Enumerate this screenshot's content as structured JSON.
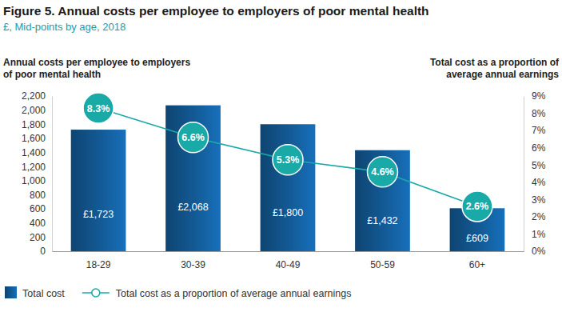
{
  "chart_data": {
    "type": "bar",
    "title": "Figure 5. Annual costs per employee to employers of poor mental health",
    "subtitle": "£, Mid-points by age, 2018",
    "y_label": "Annual costs per employee to employers\nof poor mental health",
    "y2_label": "Total cost as a proportion of\naverage annual earnings",
    "categories": [
      "18-29",
      "30-39",
      "40-49",
      "50-59",
      "60+"
    ],
    "series": [
      {
        "name": "Total cost",
        "type": "bar",
        "color": "#1565a8",
        "values": [
          1723,
          2068,
          1800,
          1432,
          609
        ],
        "value_labels": [
          "£1,723",
          "£2,068",
          "£1,800",
          "£1,432",
          "£609"
        ]
      },
      {
        "name": "Total cost as a proportion of average annual earnings",
        "type": "line",
        "axis": "y2",
        "color": "#19a9a7",
        "marker": "circle",
        "values": [
          8.3,
          6.6,
          5.3,
          4.6,
          2.6
        ],
        "value_labels": [
          "8.3%",
          "6.6%",
          "5.3%",
          "4.6%",
          "2.6%"
        ]
      }
    ],
    "ylim": [
      0,
      2200
    ],
    "yticks": [
      0,
      200,
      400,
      600,
      800,
      {
        "value": 1000,
        "label": "1,000"
      },
      {
        "value": 1200,
        "label": "1,200"
      },
      {
        "value": 1400,
        "label": "1,400"
      },
      {
        "value": 1600,
        "label": "1,600"
      },
      {
        "value": 1800,
        "label": "1,800"
      },
      {
        "value": 2000,
        "label": "2,000"
      },
      {
        "value": 2200,
        "label": "2,200"
      }
    ],
    "y2lim": [
      0,
      9
    ],
    "y2ticks": [
      {
        "value": 0,
        "label": "0%"
      },
      {
        "value": 1,
        "label": "1%"
      },
      {
        "value": 2,
        "label": "2%"
      },
      {
        "value": 3,
        "label": "3%"
      },
      {
        "value": 4,
        "label": "4%"
      },
      {
        "value": 5,
        "label": "5%"
      },
      {
        "value": 6,
        "label": "6%"
      },
      {
        "value": 7,
        "label": "7%"
      },
      {
        "value": 8,
        "label": "8%"
      },
      {
        "value": 9,
        "label": "9%"
      }
    ],
    "data_labels": true,
    "legend": "bottom"
  }
}
